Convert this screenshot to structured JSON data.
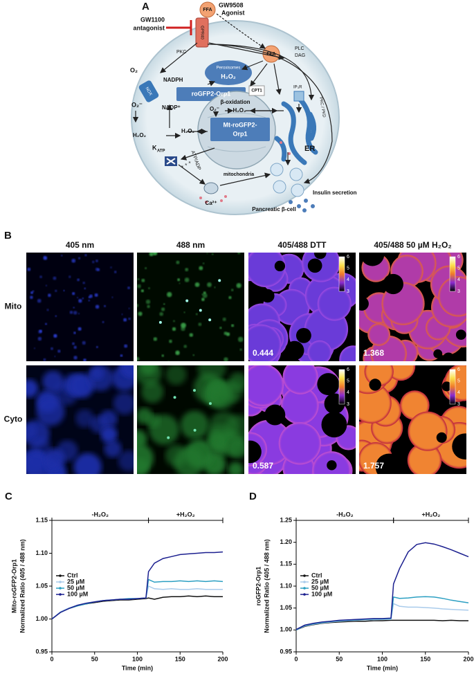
{
  "panel_a": {
    "labels": [
      "A",
      "FFA",
      "GW9508",
      "Agonist",
      "GW1100",
      "antagonist",
      "GPR40",
      "PKC",
      "PLC",
      "DAG",
      "Peroxisomes",
      "H₂O₂",
      "FFA",
      "O₂",
      "NOX",
      "NADPH",
      "NADP⁺",
      "O₂⁻",
      "roGFP2-Orp1",
      "CPT1",
      "β-oxidation",
      "O₂⁻",
      "H₂O₂",
      "Mt-roGFP2-",
      "Orp1",
      "H₂O₂",
      "H₂O₂",
      "ER",
      "IP₃R",
      "mitochondria",
      "ATP/ADP",
      "K",
      "ATP",
      "PKC / PKD",
      "Ca²⁺",
      "Insulin secretion",
      "Pancreatic β-cell",
      "+ + +"
    ]
  },
  "panel_b": {
    "label": "B",
    "columns": [
      "405 nm",
      "488 nm",
      "405/488 DTT",
      "405/488 50 µM H₂O₂"
    ],
    "rows": [
      "Mito",
      "Cyto"
    ],
    "ratios": [
      [
        "0.444",
        "1.368"
      ],
      [
        "0.587",
        "1.757"
      ]
    ],
    "colorbar_ticks": [
      3,
      4,
      5,
      6
    ]
  },
  "chart_data": [
    {
      "type": "line",
      "panel_label": "C",
      "ylabel": [
        "Mito-roGFP2-Orp1",
        "Normalized Ratio (405 / 488 nm)"
      ],
      "xlabel": "Time (min)",
      "x": [
        0,
        10,
        20,
        30,
        40,
        50,
        60,
        70,
        80,
        90,
        100,
        110,
        113,
        120,
        130,
        140,
        150,
        160,
        170,
        180,
        190,
        200
      ],
      "xlim": [
        0,
        200
      ],
      "xticks": [
        0,
        50,
        100,
        150,
        200
      ],
      "ylim": [
        0.95,
        1.15
      ],
      "yticks": [
        0.95,
        {
          "value": 1,
          "label": "1.00"
        },
        1.05,
        {
          "value": 1.1,
          "label": "1.10"
        },
        1.15
      ],
      "annotations": [
        {
          "text": "-H₂O₂",
          "x": [
            0,
            113
          ]
        },
        {
          "text": "+H₂O₂",
          "x": [
            113,
            200
          ]
        }
      ],
      "series": [
        {
          "name": "Ctrl",
          "color": "#111111",
          "values": [
            1.0,
            1.01,
            1.016,
            1.02,
            1.023,
            1.025,
            1.027,
            1.028,
            1.029,
            1.029,
            1.03,
            1.031,
            1.032,
            1.03,
            1.033,
            1.034,
            1.034,
            1.035,
            1.034,
            1.035,
            1.034,
            1.034
          ]
        },
        {
          "name": "25 µM",
          "color": "#a9cbeb",
          "values": [
            1.0,
            1.011,
            1.017,
            1.021,
            1.024,
            1.026,
            1.028,
            1.029,
            1.03,
            1.03,
            1.031,
            1.032,
            1.05,
            1.046,
            1.045,
            1.046,
            1.045,
            1.045,
            1.046,
            1.045,
            1.045,
            1.045
          ]
        },
        {
          "name": "50 µM",
          "color": "#2b9fc2",
          "values": [
            1.0,
            1.01,
            1.016,
            1.02,
            1.023,
            1.026,
            1.028,
            1.029,
            1.03,
            1.031,
            1.031,
            1.032,
            1.06,
            1.056,
            1.057,
            1.057,
            1.058,
            1.057,
            1.058,
            1.057,
            1.058,
            1.057
          ]
        },
        {
          "name": "100 µM",
          "color": "#1b1f8f",
          "values": [
            1.0,
            1.01,
            1.016,
            1.021,
            1.024,
            1.026,
            1.028,
            1.029,
            1.03,
            1.03,
            1.031,
            1.032,
            1.072,
            1.085,
            1.092,
            1.095,
            1.098,
            1.099,
            1.1,
            1.101,
            1.101,
            1.102
          ]
        }
      ]
    },
    {
      "type": "line",
      "panel_label": "D",
      "ylabel": [
        "roGFP2-Orp1",
        "Normalized Ratio (405 / 488 nm)"
      ],
      "xlabel": "Time (min)",
      "x": [
        0,
        10,
        20,
        30,
        40,
        50,
        60,
        70,
        80,
        90,
        100,
        110,
        113,
        120,
        130,
        140,
        150,
        160,
        170,
        180,
        190,
        200
      ],
      "xlim": [
        0,
        200
      ],
      "xticks": [
        0,
        50,
        100,
        150,
        200
      ],
      "ylim": [
        0.95,
        1.25
      ],
      "yticks": [
        0.95,
        {
          "value": 1,
          "label": "1.00"
        },
        1.05,
        {
          "value": 1.1,
          "label": "1.10"
        },
        1.15,
        {
          "value": 1.2,
          "label": "1.20"
        },
        1.25
      ],
      "annotations": [
        {
          "text": "-H₂O₂",
          "x": [
            0,
            113
          ]
        },
        {
          "text": "+H₂O₂",
          "x": [
            113,
            200
          ]
        }
      ],
      "series": [
        {
          "name": "Ctrl",
          "color": "#111111",
          "values": [
            1.0,
            1.008,
            1.012,
            1.015,
            1.017,
            1.018,
            1.019,
            1.02,
            1.02,
            1.021,
            1.021,
            1.022,
            1.022,
            1.022,
            1.022,
            1.022,
            1.022,
            1.022,
            1.021,
            1.022,
            1.021,
            1.021
          ]
        },
        {
          "name": "25 µM",
          "color": "#a9cbeb",
          "values": [
            1.0,
            1.009,
            1.013,
            1.016,
            1.018,
            1.02,
            1.021,
            1.022,
            1.023,
            1.023,
            1.024,
            1.024,
            1.06,
            1.054,
            1.052,
            1.052,
            1.051,
            1.05,
            1.048,
            1.047,
            1.046,
            1.045
          ]
        },
        {
          "name": "50 µM",
          "color": "#2b9fc2",
          "values": [
            1.0,
            1.01,
            1.014,
            1.017,
            1.019,
            1.021,
            1.022,
            1.023,
            1.024,
            1.025,
            1.025,
            1.026,
            1.075,
            1.072,
            1.073,
            1.075,
            1.076,
            1.075,
            1.072,
            1.068,
            1.065,
            1.062
          ]
        },
        {
          "name": "100 µM",
          "color": "#1b1f8f",
          "values": [
            1.001,
            1.011,
            1.015,
            1.018,
            1.02,
            1.022,
            1.023,
            1.024,
            1.025,
            1.026,
            1.026,
            1.027,
            1.105,
            1.14,
            1.178,
            1.195,
            1.199,
            1.196,
            1.19,
            1.183,
            1.175,
            1.167
          ]
        }
      ]
    }
  ]
}
